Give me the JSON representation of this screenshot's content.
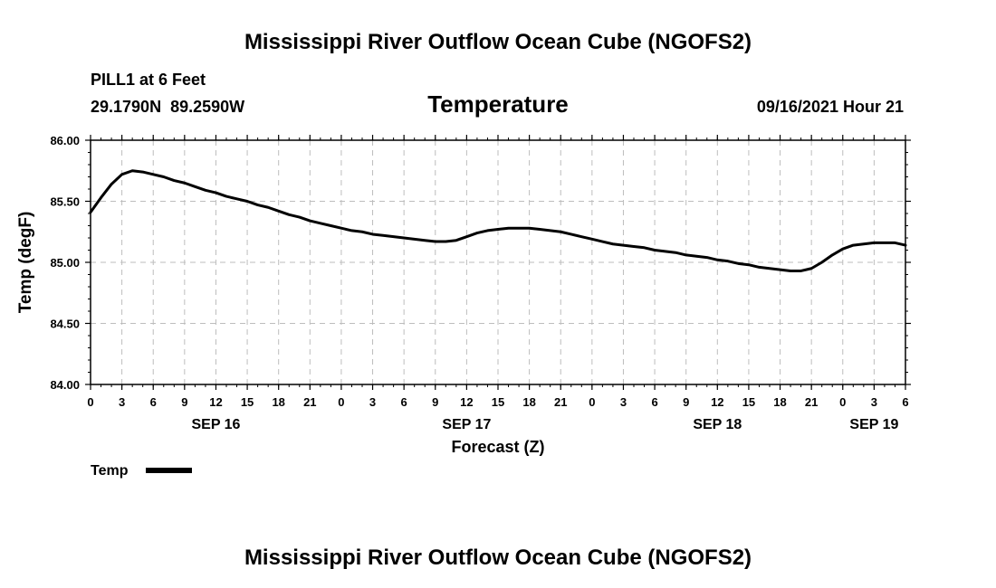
{
  "header": {
    "title": "Mississippi River Outflow Ocean Cube (NGOFS2)",
    "station": "PILL1 at 6 Feet",
    "coords": "29.1790N  89.2590W",
    "variable": "Temperature",
    "timestamp": "09/16/2021 Hour 21"
  },
  "footer": {
    "title": "Mississippi River Outflow Ocean Cube (NGOFS2)"
  },
  "colors": {
    "line": "#000000",
    "grid": "#bdbdbd",
    "axis": "#000000",
    "background": "#ffffff"
  },
  "chart_data": {
    "type": "line",
    "title": "Temperature",
    "xlabel": "Forecast (Z)",
    "ylabel": "Temp (degF)",
    "xlim": [
      0,
      78
    ],
    "ylim": [
      84.0,
      86.0
    ],
    "yticks": [
      84.0,
      84.5,
      85.0,
      85.5,
      86.0
    ],
    "ytick_labels": [
      "84.00",
      "84.50",
      "85.00",
      "85.50",
      "86.00"
    ],
    "xtick_hours": [
      0,
      3,
      6,
      9,
      12,
      15,
      18,
      21,
      24,
      27,
      30,
      33,
      36,
      39,
      42,
      45,
      48,
      51,
      54,
      57,
      60,
      63,
      66,
      69,
      72,
      75,
      78
    ],
    "xtick_labels": [
      "0",
      "3",
      "6",
      "9",
      "12",
      "15",
      "18",
      "21",
      "0",
      "3",
      "6",
      "9",
      "12",
      "15",
      "18",
      "21",
      "0",
      "3",
      "6",
      "9",
      "12",
      "15",
      "18",
      "21",
      "0",
      "3",
      "6"
    ],
    "date_labels": [
      {
        "hour": 12,
        "label": "SEP 16"
      },
      {
        "hour": 36,
        "label": "SEP 17"
      },
      {
        "hour": 60,
        "label": "SEP 18"
      },
      {
        "hour": 75,
        "label": "SEP 19"
      }
    ],
    "grid": true,
    "legend": {
      "position": "bottom-left",
      "entries": [
        "Temp"
      ]
    },
    "series": [
      {
        "name": "Temp",
        "x": [
          0,
          1,
          2,
          3,
          4,
          5,
          6,
          7,
          8,
          9,
          10,
          11,
          12,
          13,
          14,
          15,
          16,
          17,
          18,
          19,
          20,
          21,
          22,
          23,
          24,
          25,
          26,
          27,
          28,
          29,
          30,
          31,
          32,
          33,
          34,
          35,
          36,
          37,
          38,
          39,
          40,
          41,
          42,
          43,
          44,
          45,
          46,
          47,
          48,
          49,
          50,
          51,
          52,
          53,
          54,
          55,
          56,
          57,
          58,
          59,
          60,
          61,
          62,
          63,
          64,
          65,
          66,
          67,
          68,
          69,
          70,
          71,
          72,
          73,
          74,
          75,
          76,
          77,
          78
        ],
        "values": [
          85.41,
          85.53,
          85.64,
          85.72,
          85.75,
          85.74,
          85.72,
          85.7,
          85.67,
          85.65,
          85.62,
          85.59,
          85.57,
          85.54,
          85.52,
          85.5,
          85.47,
          85.45,
          85.42,
          85.39,
          85.37,
          85.34,
          85.32,
          85.3,
          85.28,
          85.26,
          85.25,
          85.23,
          85.22,
          85.21,
          85.2,
          85.19,
          85.18,
          85.17,
          85.17,
          85.18,
          85.21,
          85.24,
          85.26,
          85.27,
          85.28,
          85.28,
          85.28,
          85.27,
          85.26,
          85.25,
          85.23,
          85.21,
          85.19,
          85.17,
          85.15,
          85.14,
          85.13,
          85.12,
          85.1,
          85.09,
          85.08,
          85.06,
          85.05,
          85.04,
          85.02,
          85.01,
          84.99,
          84.98,
          84.96,
          84.95,
          84.94,
          84.93,
          84.93,
          84.95,
          85.0,
          85.06,
          85.11,
          85.14,
          85.15,
          85.16,
          85.16,
          85.16,
          85.14
        ]
      }
    ]
  }
}
